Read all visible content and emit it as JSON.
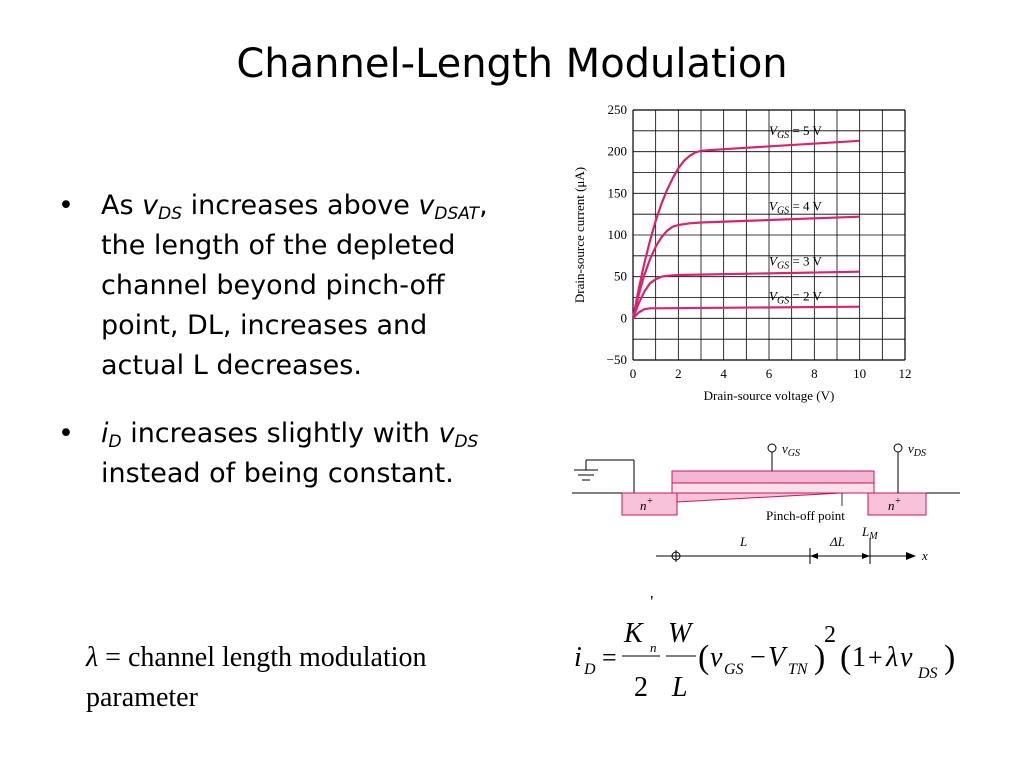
{
  "slide": {
    "title": "Channel-Length Modulation",
    "bullets": [
      {
        "bullet_glyph": "•",
        "text_1": "As ",
        "var_1": "v",
        "sub_1": "DS",
        "text_2": " increases above ",
        "var_2": "v",
        "sub_2": "DSAT",
        "text_3": ", the length of the depleted channel beyond pinch-off point, DL, increases and actual L decreases."
      },
      {
        "bullet_glyph": "•",
        "var_1": "i",
        "sub_1": "D",
        "text_2": " increases slightly with ",
        "var_2": "v",
        "sub_2": "DS",
        "text_3": " instead of being constant."
      }
    ],
    "lambda_note": {
      "symbol": "λ",
      "equals": " = ",
      "text": "channel length modulation parameter"
    }
  },
  "chart_data": {
    "type": "line",
    "xlabel": "Drain-source voltage (V)",
    "ylabel": "Drain-source current (μA)",
    "xlim": [
      0,
      12
    ],
    "ylim": [
      -50,
      250
    ],
    "x_ticks": [
      "0",
      "2",
      "4",
      "6",
      "8",
      "10",
      "12"
    ],
    "y_ticks": [
      "−50",
      "0",
      "50",
      "100",
      "150",
      "200",
      "250"
    ],
    "grid": true,
    "series": [
      {
        "name": "V_GS = 5 V",
        "label_main": "V",
        "label_sub": "GS",
        "label_val": " = 5 V",
        "x": [
          0,
          0.25,
          0.5,
          0.75,
          1,
          1.25,
          1.5,
          1.75,
          2,
          2.25,
          2.5,
          2.75,
          3,
          3.5,
          4,
          10
        ],
        "y": [
          0,
          35,
          66,
          93,
          117,
          137,
          154,
          168,
          180,
          189,
          195,
          199,
          201,
          202,
          203,
          213
        ]
      },
      {
        "name": "V_GS = 4 V",
        "label_main": "V",
        "label_sub": "GS",
        "label_val": " = 4 V",
        "x": [
          0,
          0.25,
          0.5,
          0.75,
          1,
          1.25,
          1.5,
          1.75,
          2,
          2.5,
          3,
          10
        ],
        "y": [
          0,
          28,
          52,
          71,
          86,
          97,
          105,
          110,
          112,
          114,
          115,
          122
        ]
      },
      {
        "name": "V_GS = 3 V",
        "label_main": "V",
        "label_sub": "GS",
        "label_val": " = 3 V",
        "x": [
          0,
          0.25,
          0.5,
          0.75,
          1,
          1.25,
          1.5,
          2,
          10
        ],
        "y": [
          0,
          18,
          32,
          42,
          47,
          50,
          51,
          52,
          56
        ]
      },
      {
        "name": "V_GS = 2 V",
        "label_main": "V",
        "label_sub": "GS",
        "label_val": " = 2 V",
        "x": [
          0,
          0.25,
          0.5,
          0.75,
          1,
          10
        ],
        "y": [
          0,
          7,
          11,
          12,
          12,
          14
        ]
      }
    ]
  },
  "cross_section": {
    "vgs_label": "v",
    "vgs_sub": "GS",
    "vds_label": "v",
    "vds_sub": "DS",
    "n_left": "n",
    "n_right": "n",
    "n_sup": "+",
    "pinch_label": "Pinch-off point",
    "L_label": "L",
    "dL_label": "ΔL",
    "LM_main": "L",
    "LM_sub": "M",
    "x_label": "x",
    "colors": {
      "gate": "#f4b6d2",
      "channel": "#f8c3da",
      "outline": "#c2185b"
    }
  },
  "equation": {
    "lhs_var": "i",
    "lhs_sub": "D",
    "equals": "=",
    "K": "K",
    "K_sub": "n",
    "prime": "'",
    "two": "2",
    "W": "W",
    "L": "L",
    "paren_open": "(",
    "v": "v",
    "v_sub": "GS",
    "minus": "−",
    "V": "V",
    "V_sub": "TN",
    "paren_close": ")",
    "square": "2",
    "p2_open": "(",
    "one": "1",
    "plus": "+",
    "lambda": "λ",
    "v2": "v",
    "v2_sub": "DS",
    "p2_close": ")"
  },
  "colors": {
    "curve": "#d6246e",
    "grid": "#000000"
  }
}
